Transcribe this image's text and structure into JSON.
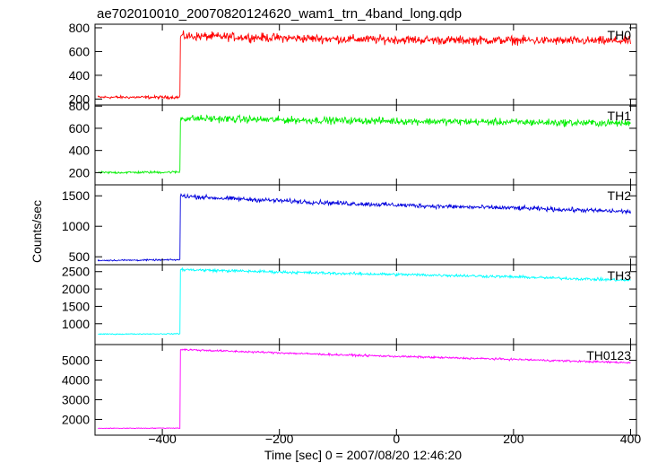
{
  "title": "ae702010010_20070820124620_wam1_trn_4band_long.qdp",
  "ylabel": "Counts/sec",
  "xlabel": "Time [sec] 0 = 2007/08/20 12:46:20",
  "chart_data": {
    "type": "line",
    "title": "ae702010010_20070820124620_wam1_trn_4band_long.qdp",
    "xlabel": "Time [sec] 0 = 2007/08/20 12:46:20",
    "ylabel": "Counts/sec",
    "xlim": [
      -515,
      410
    ],
    "x_ticks": [
      -400,
      -200,
      0,
      200,
      400
    ],
    "x_tick_labels": [
      "−400",
      "−200",
      "0",
      "200",
      "400"
    ],
    "grid": false,
    "trigger_time": -370,
    "panels": [
      {
        "name": "TH0",
        "color": "#ff0000",
        "ylim": [
          150,
          830
        ],
        "y_ticks": [
          200,
          400,
          600,
          800
        ],
        "x": [
          -510,
          -370,
          -369,
          -300,
          -200,
          -100,
          0,
          100,
          200,
          300,
          400
        ],
        "y": [
          215,
          215,
          730,
          725,
          715,
          705,
          700,
          695,
          695,
          690,
          690
        ],
        "noise": 40
      },
      {
        "name": "TH1",
        "color": "#00ee00",
        "ylim": [
          90,
          810
        ],
        "y_ticks": [
          200,
          400,
          600,
          800
        ],
        "x": [
          -510,
          -370,
          -369,
          -300,
          -200,
          -100,
          0,
          100,
          200,
          300,
          400
        ],
        "y": [
          200,
          205,
          690,
          685,
          675,
          670,
          665,
          660,
          655,
          650,
          645
        ],
        "noise": 35
      },
      {
        "name": "TH2",
        "color": "#0000dd",
        "ylim": [
          370,
          1680
        ],
        "y_ticks": [
          500,
          1000,
          1500
        ],
        "x": [
          -510,
          -370,
          -369,
          -300,
          -200,
          -100,
          0,
          100,
          200,
          300,
          400
        ],
        "y": [
          440,
          450,
          1500,
          1460,
          1420,
          1380,
          1350,
          1320,
          1300,
          1270,
          1240
        ],
        "noise": 40
      },
      {
        "name": "TH3",
        "color": "#00ffff",
        "ylim": [
          400,
          2700
        ],
        "y_ticks": [
          1000,
          1500,
          2000,
          2500
        ],
        "x": [
          -510,
          -370,
          -369,
          -300,
          -200,
          -100,
          0,
          100,
          200,
          300,
          400
        ],
        "y": [
          700,
          710,
          2560,
          2530,
          2490,
          2450,
          2420,
          2390,
          2350,
          2300,
          2250
        ],
        "noise": 45
      },
      {
        "name": "TH0123",
        "color": "#ff00ff",
        "ylim": [
          1200,
          5800
        ],
        "y_ticks": [
          2000,
          3000,
          4000,
          5000
        ],
        "x": [
          -510,
          -370,
          -369,
          -300,
          -200,
          -100,
          0,
          100,
          200,
          300,
          400
        ],
        "y": [
          1550,
          1560,
          5550,
          5480,
          5380,
          5280,
          5200,
          5120,
          5050,
          4960,
          4880
        ],
        "noise": 55
      }
    ]
  }
}
